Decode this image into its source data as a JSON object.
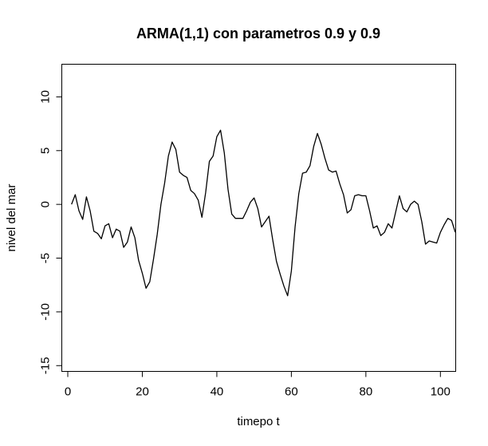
{
  "chart_data": {
    "type": "line",
    "title": "ARMA(1,1) con parametros 0.9 y 0.9",
    "xlabel": "timepo t",
    "ylabel": "nivel del mar",
    "xlim": [
      -1.5,
      104
    ],
    "ylim": [
      -15.5,
      13
    ],
    "xticks": [
      0,
      20,
      40,
      60,
      80,
      100
    ],
    "yticks": [
      -15,
      -10,
      -5,
      0,
      5,
      10
    ],
    "xtick_labels": [
      "0",
      "20",
      "40",
      "60",
      "80",
      "100"
    ],
    "ytick_labels": [
      "-15",
      "-10",
      "-5",
      "0",
      "5",
      "10"
    ],
    "grid": false,
    "line_color": "#000000",
    "series": [
      {
        "x": [
          1,
          2,
          3,
          4,
          5,
          6,
          7,
          8,
          9,
          10,
          11,
          12,
          13,
          14,
          15,
          16,
          17,
          18,
          19,
          20,
          21,
          22,
          23,
          24,
          25,
          26,
          27,
          28,
          29,
          30,
          31,
          32,
          33,
          34,
          35,
          36,
          37,
          38,
          39,
          40,
          41,
          42,
          43,
          44,
          45,
          46,
          47,
          48,
          49,
          50,
          51,
          52,
          53,
          54,
          55,
          56,
          57,
          58,
          59,
          60,
          61,
          62,
          63,
          64,
          65,
          66,
          67,
          68,
          69,
          70,
          71,
          72,
          73,
          74,
          75,
          76,
          77,
          78,
          79,
          80,
          81,
          82,
          83,
          84,
          85,
          86,
          87,
          88,
          89,
          90,
          91,
          92,
          93,
          94,
          95,
          96,
          97,
          98,
          99,
          100,
          101,
          102,
          103,
          104
        ],
        "values": [
          0.0,
          0.9,
          -0.6,
          -1.4,
          0.7,
          -0.6,
          -2.5,
          -2.7,
          -3.2,
          -2.0,
          -1.8,
          -3.1,
          -2.3,
          -2.5,
          -4.0,
          -3.5,
          -2.1,
          -3.1,
          -5.2,
          -6.4,
          -7.8,
          -7.2,
          -5.1,
          -2.8,
          0.0,
          2.0,
          4.5,
          5.8,
          5.1,
          3.0,
          2.7,
          2.5,
          1.3,
          1.0,
          0.4,
          -1.2,
          1.1,
          4.0,
          4.5,
          6.3,
          6.9,
          4.8,
          1.4,
          -0.9,
          -1.3,
          -1.3,
          -1.3,
          -0.6,
          0.2,
          0.6,
          -0.4,
          -2.1,
          -1.6,
          -1.1,
          -3.3,
          -5.3,
          -6.5,
          -7.6,
          -8.5,
          -6.2,
          -2.1,
          1.0,
          2.9,
          3.0,
          3.6,
          5.4,
          6.6,
          5.6,
          4.3,
          3.2,
          3.0,
          3.1,
          1.9,
          0.9,
          -0.8,
          -0.5,
          0.8,
          0.9,
          0.8,
          0.8,
          -0.6,
          -2.2,
          -2.0,
          -2.9,
          -2.6,
          -1.8,
          -2.2,
          -0.7,
          0.8,
          -0.4,
          -0.7,
          0.0,
          0.3,
          0.0,
          -1.6,
          -3.7,
          -3.4,
          -3.5,
          -3.6,
          -2.6,
          -1.9,
          -1.3,
          -1.5,
          -2.6
        ]
      }
    ]
  }
}
